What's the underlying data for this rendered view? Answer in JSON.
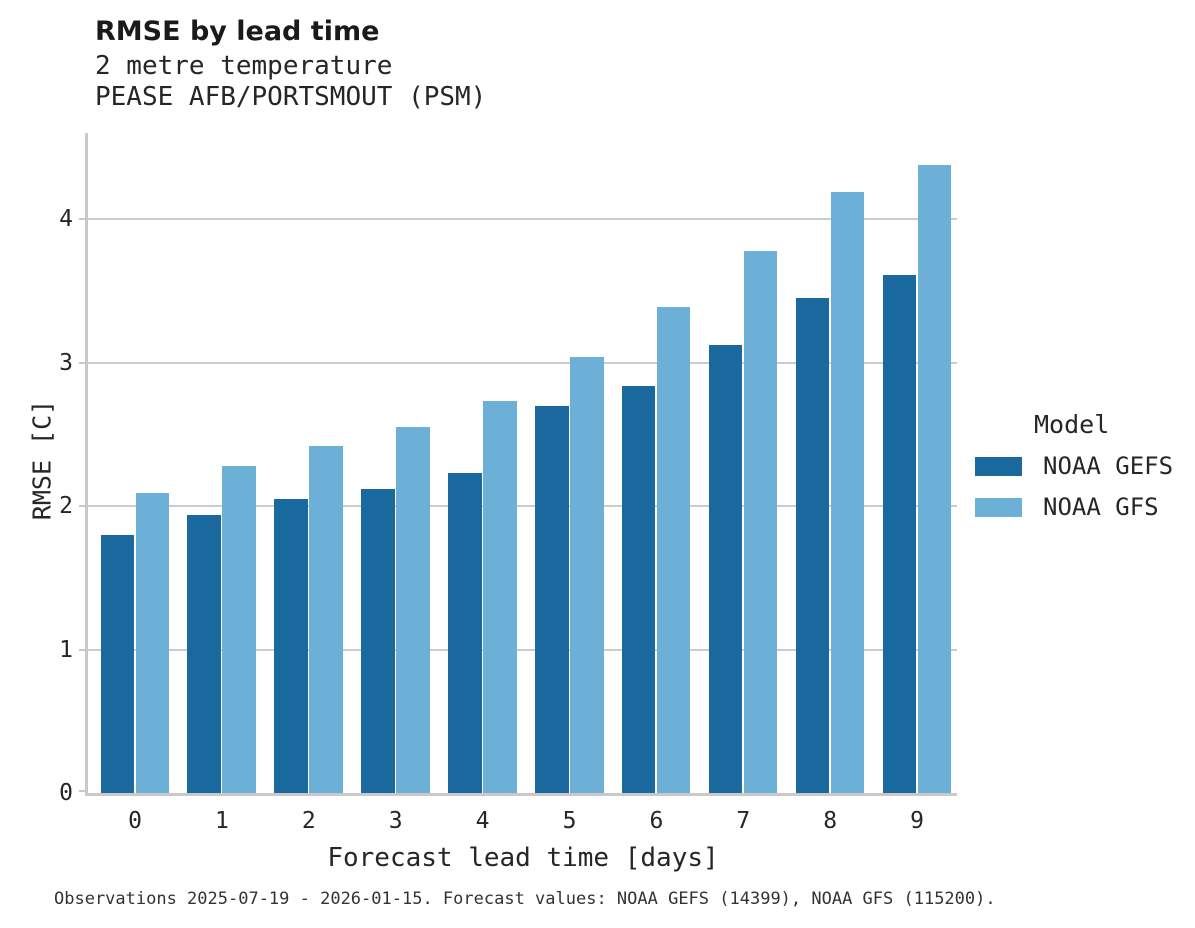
{
  "header": {
    "title": "RMSE by lead time",
    "subtitle1": "2 metre temperature",
    "subtitle2": "PEASE AFB/PORTSMOUT (PSM)"
  },
  "legend": {
    "title": "Model",
    "items": [
      {
        "label": "NOAA GEFS",
        "color": "#19699E"
      },
      {
        "label": "NOAA GFS",
        "color": "#6CB0D8"
      }
    ]
  },
  "footer": {
    "text": "Observations 2025-07-19 - 2026-01-15. Forecast values: NOAA GEFS (14399), NOAA GFS (115200)."
  },
  "colors": {
    "background": "#ffffff",
    "grid": "#cccccc",
    "spine": "#c9c9c9",
    "text": "#262626",
    "footer_text": "#333333"
  },
  "chart_data": {
    "type": "bar",
    "title": "RMSE by lead time",
    "subtitle": [
      "2 metre temperature",
      "PEASE AFB/PORTSMOUT (PSM)"
    ],
    "categories": [
      "0",
      "1",
      "2",
      "3",
      "4",
      "5",
      "6",
      "7",
      "8",
      "9"
    ],
    "series": [
      {
        "name": "NOAA GEFS",
        "color": "#19699E",
        "values": [
          1.8,
          1.94,
          2.05,
          2.12,
          2.23,
          2.7,
          2.84,
          3.12,
          3.45,
          3.61
        ]
      },
      {
        "name": "NOAA GFS",
        "color": "#6CB0D8",
        "values": [
          2.09,
          2.28,
          2.42,
          2.55,
          2.73,
          3.04,
          3.39,
          3.78,
          4.19,
          4.38
        ]
      }
    ],
    "xlabel": "Forecast lead time [days]",
    "ylabel": "RMSE [C]",
    "yticks": [
      0,
      1,
      2,
      3,
      4
    ],
    "ylim": [
      0,
      4.6
    ],
    "grid": "horizontal",
    "legend_title": "Model",
    "legend_position": "right"
  }
}
